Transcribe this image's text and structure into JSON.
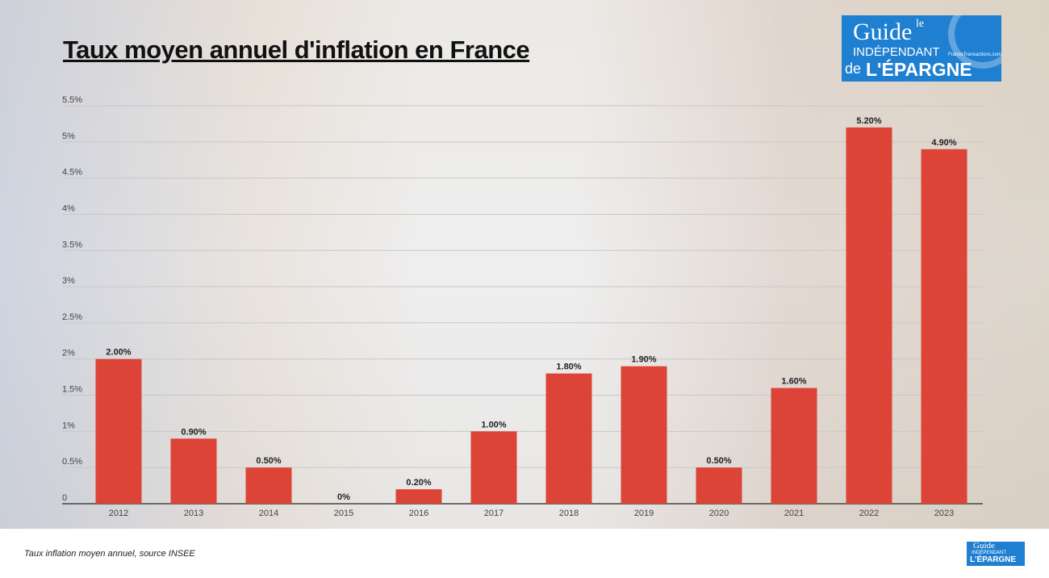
{
  "title": "Taux moyen annuel d'inflation en France",
  "source_note": "Taux inflation moyen annuel, source INSEE",
  "logo": {
    "line1": "le",
    "line2": "Guide",
    "line3": "INDÉPENDANT",
    "line4": "de",
    "line5": "L'ÉPARGNE",
    "site": "FranceTransactions.com"
  },
  "colors": {
    "bar": "#db4437",
    "logo_bg": "#1f7fd0"
  },
  "chart_data": {
    "type": "bar",
    "title": "Taux moyen annuel d'inflation en France",
    "categories": [
      "2012",
      "2013",
      "2014",
      "2015",
      "2016",
      "2017",
      "2018",
      "2019",
      "2020",
      "2021",
      "2022",
      "2023"
    ],
    "values": [
      2.0,
      0.9,
      0.5,
      0,
      0.2,
      1.0,
      1.8,
      1.9,
      0.5,
      1.6,
      5.2,
      4.9
    ],
    "data_labels": [
      "2.00%",
      "0.90%",
      "0.50%",
      "0%",
      "0.20%",
      "1.00%",
      "1.80%",
      "1.90%",
      "0.50%",
      "1.60%",
      "5.20%",
      "4.90%"
    ],
    "yticks": [
      0,
      0.5,
      1,
      1.5,
      2,
      2.5,
      3,
      3.5,
      4,
      4.5,
      5,
      5.5
    ],
    "ytick_labels": [
      "0",
      "0.5%",
      "1%",
      "1.5%",
      "2%",
      "2.5%",
      "3%",
      "3.5%",
      "4%",
      "4.5%",
      "5%",
      "5.5%"
    ],
    "ylim": [
      0,
      5.5
    ],
    "xlabel": "",
    "ylabel": "",
    "grid": true
  }
}
